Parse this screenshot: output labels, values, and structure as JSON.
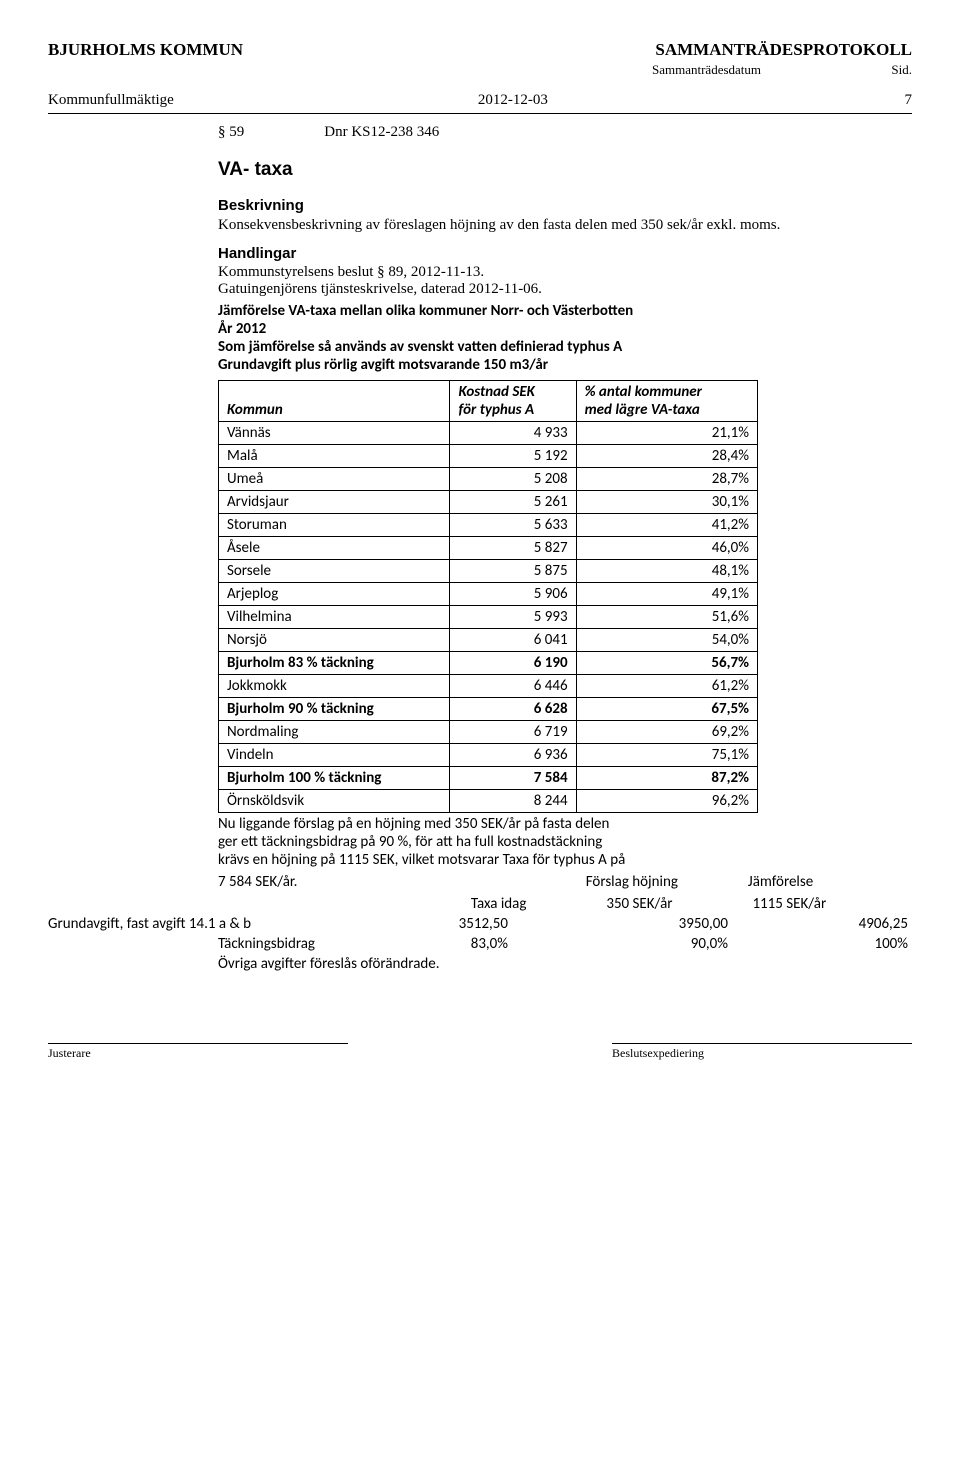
{
  "header": {
    "org": "BJURHOLMS KOMMUN",
    "doc_type": "SAMMANTRÄDESPROTOKOLL",
    "sub_left": "",
    "sub_mid": "Sammanträdesdatum",
    "sub_right": "Sid."
  },
  "meta": {
    "body": "Kommunfullmäktige",
    "date": "2012-12-03",
    "page": "7"
  },
  "dnr": {
    "section": "§ 59",
    "ref": "Dnr KS12-238 346"
  },
  "title": "VA- taxa",
  "beskrivning": {
    "head": "Beskrivning",
    "text": "Konsekvensbeskrivning av föreslagen höjning av den fasta delen med 350 sek/år exkl. moms."
  },
  "handlingar": {
    "head": "Handlingar",
    "l1": "Kommunstyrelsens beslut § 89, 2012-11-13.",
    "l2": "Gatuingenjörens tjänsteskrivelse, daterad 2012-11-06."
  },
  "compare": {
    "h1": "Jämförelse VA-taxa mellan olika kommuner Norr- och Västerbotten",
    "h2": "År 2012",
    "h3": "Som jämförelse så används av svenskt vatten definierad typhus A",
    "h4": "Grundavgift plus rörlig avgift motsvarande 150 m3/år"
  },
  "table": {
    "col1": "Kommun",
    "col2a": "Kostnad SEK",
    "col2b": "för typhus A",
    "col3a": "% antal kommuner",
    "col3b": "med lägre VA-taxa",
    "rows": [
      {
        "k": "Vännäs",
        "v": "4 933",
        "p": "21,1%",
        "b": false
      },
      {
        "k": "Malå",
        "v": "5 192",
        "p": "28,4%",
        "b": false
      },
      {
        "k": "Umeå",
        "v": "5 208",
        "p": "28,7%",
        "b": false
      },
      {
        "k": "Arvidsjaur",
        "v": "5 261",
        "p": "30,1%",
        "b": false
      },
      {
        "k": "Storuman",
        "v": "5 633",
        "p": "41,2%",
        "b": false
      },
      {
        "k": "Åsele",
        "v": "5 827",
        "p": "46,0%",
        "b": false
      },
      {
        "k": "Sorsele",
        "v": "5 875",
        "p": "48,1%",
        "b": false
      },
      {
        "k": "Arjeplog",
        "v": "5 906",
        "p": "49,1%",
        "b": false
      },
      {
        "k": "Vilhelmina",
        "v": "5 993",
        "p": "51,6%",
        "b": false
      },
      {
        "k": "Norsjö",
        "v": "6 041",
        "p": "54,0%",
        "b": false
      },
      {
        "k": "Bjurholm 83 % täckning",
        "v": "6 190",
        "p": "56,7%",
        "b": true
      },
      {
        "k": "Jokkmokk",
        "v": "6 446",
        "p": "61,2%",
        "b": false
      },
      {
        "k": "Bjurholm 90 % täckning",
        "v": "6 628",
        "p": "67,5%",
        "b": true
      },
      {
        "k": "Nordmaling",
        "v": "6 719",
        "p": "69,2%",
        "b": false
      },
      {
        "k": "Vindeln",
        "v": "6 936",
        "p": "75,1%",
        "b": false
      },
      {
        "k": "Bjurholm 100 % täckning",
        "v": "7 584",
        "p": "87,2%",
        "b": true
      },
      {
        "k": "Örnsköldsvik",
        "v": "8 244",
        "p": "96,2%",
        "b": false
      }
    ]
  },
  "after": {
    "l1": "Nu liggande förslag på en höjning med 350 SEK/år på fasta delen",
    "l2": "ger ett täckningsbidrag på 90 %, för att ha full kostnadstäckning",
    "l3": "krävs en höjning på 1115 SEK, vilket motsvarar Taxa för typhus A på",
    "l4a": "7 584 SEK/år.",
    "l4b": "Förslag höjning",
    "l4c": "Jämförelse",
    "l5a": "Taxa idag",
    "l5b": "350 SEK/år",
    "l5c": "1115 SEK/år"
  },
  "grund": {
    "label": "Grundavgift, fast avgift 14.1 a & b",
    "v1": "3512,50",
    "v2": "3950,00",
    "v3": "4906,25"
  },
  "tack": {
    "label": "Täckningsbidrag",
    "v1": "83,0%",
    "v2": "90,0%",
    "v3": "100%"
  },
  "ovr": "Övriga avgifter föreslås oförändrade.",
  "footer": {
    "left": "Justerare",
    "right": "Beslutsexpediering"
  }
}
